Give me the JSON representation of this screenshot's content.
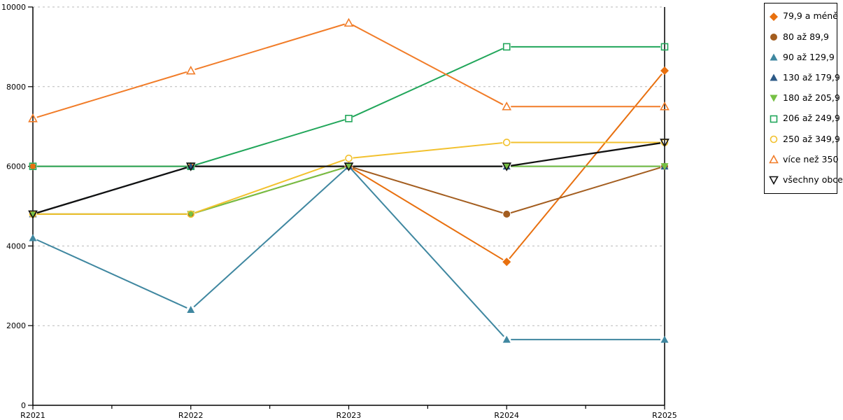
{
  "chart_data": {
    "type": "line",
    "title": "",
    "xlabel": "",
    "ylabel": "",
    "categories": [
      "R2021",
      "R2022",
      "R2023",
      "R2024",
      "R2025"
    ],
    "ylim": [
      0,
      10000
    ],
    "ytick_step": 2000,
    "ytick_labels": [
      "0",
      "2000",
      "4000",
      "6000",
      "8000",
      "10000"
    ],
    "grid": "horizontal-dashed",
    "legend_position": "outside-top-right",
    "grid_color": "#b9b9b9",
    "axis_color": "#000000",
    "series": [
      {
        "name": "79,9 a méně",
        "marker": "diamond-filled",
        "color": "#E8700F",
        "values": [
          6000,
          6000,
          6000,
          3600,
          8400
        ]
      },
      {
        "name": "80 až 89,9",
        "marker": "circle-filled",
        "color": "#A35D1F",
        "values": [
          4800,
          4800,
          6000,
          4800,
          6000
        ]
      },
      {
        "name": "90 až 129,9",
        "marker": "triangle-up-filled",
        "color": "#3F87A0",
        "values": [
          4200,
          2400,
          6000,
          1650,
          1650
        ]
      },
      {
        "name": "130 až 179,9",
        "marker": "triangle-up-filled",
        "color": "#2D5A87",
        "values": [
          4800,
          6000,
          6000,
          6000,
          6000
        ]
      },
      {
        "name": "180 až 205,9",
        "marker": "triangle-down-filled",
        "color": "#76C044",
        "values": [
          4800,
          4800,
          6000,
          6000,
          6000
        ]
      },
      {
        "name": "206 až 249,9",
        "marker": "square-open",
        "color": "#21A65A",
        "values": [
          6000,
          6000,
          7200,
          9000,
          9000
        ]
      },
      {
        "name": "250 až 349,9",
        "marker": "circle-open",
        "color": "#F2C12E",
        "values": [
          4800,
          4800,
          6200,
          6600,
          6600
        ]
      },
      {
        "name": "více než 350",
        "marker": "triangle-up-open",
        "color": "#F17C28",
        "values": [
          7200,
          8400,
          9600,
          7500,
          7500
        ]
      },
      {
        "name": "všechny obce",
        "marker": "triangle-down-open",
        "color": "#111111",
        "values": [
          4800,
          6000,
          6000,
          6000,
          6600
        ]
      }
    ]
  }
}
